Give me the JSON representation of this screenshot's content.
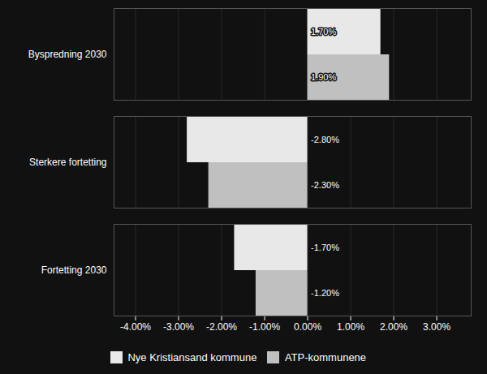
{
  "chart_data": {
    "type": "bar",
    "orientation": "horizontal",
    "categories": [
      "Byspredning 2030",
      "Sterkere fortetting",
      "Fortetting 2030"
    ],
    "series": [
      {
        "name": "Nye Kristiansand kommune",
        "color": "#e8e8e8",
        "values": [
          1.7,
          -2.8,
          -1.7
        ],
        "value_labels": [
          "1.70%",
          "-2.80%",
          "-1.70%"
        ]
      },
      {
        "name": "ATP-kommunene",
        "color": "#c0c0c0",
        "values": [
          1.9,
          -2.3,
          -1.2
        ],
        "value_labels": [
          "1.90%",
          "-2.30%",
          "-1.20%"
        ]
      }
    ],
    "xlim": [
      -4.5,
      3.8
    ],
    "xticks": [
      {
        "value": -4.0,
        "label": "-4.00%"
      },
      {
        "value": -3.0,
        "label": "-3.00%"
      },
      {
        "value": -2.0,
        "label": "-2.00%"
      },
      {
        "value": -1.0,
        "label": "-1.00%"
      },
      {
        "value": 0.0,
        "label": "0.00%"
      },
      {
        "value": 1.0,
        "label": "1.00%"
      },
      {
        "value": 2.0,
        "label": "2.00%"
      },
      {
        "value": 3.0,
        "label": "3.00%"
      }
    ],
    "grid": true,
    "data_labels": true,
    "legend": "bottom"
  }
}
